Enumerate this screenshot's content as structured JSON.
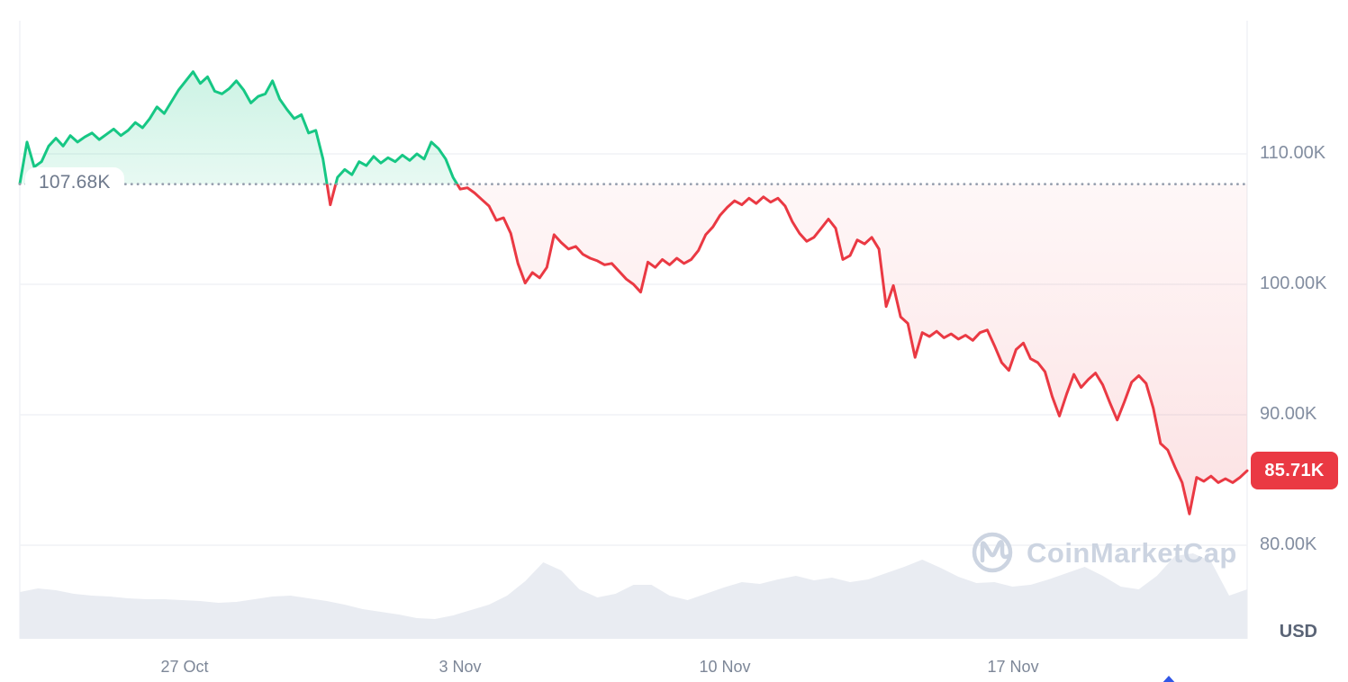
{
  "watermark": {
    "text": "CoinMarketCap"
  },
  "chart_data": {
    "type": "line",
    "description": "1-month cryptocurrency price chart with volume, price falling from ~116.3K to 85.71K USD",
    "y_axis": {
      "unit_label": "USD",
      "ticks": [
        {
          "value": 110,
          "label": "110.00K"
        },
        {
          "value": 100,
          "label": "100.00K"
        },
        {
          "value": 90,
          "label": "90.00K"
        },
        {
          "value": 80,
          "label": "80.00K"
        }
      ]
    },
    "x_axis": {
      "ticks": [
        {
          "label": "27 Oct",
          "f": 0.1343
        },
        {
          "label": "3 Nov",
          "f": 0.3588
        },
        {
          "label": "10 Nov",
          "f": 0.5745
        },
        {
          "label": "17 Nov",
          "f": 0.8093
        }
      ]
    },
    "baseline": {
      "value": 107.68,
      "label": "107.68K"
    },
    "last_price": {
      "value": 85.71,
      "label": "85.71K"
    },
    "series": [
      {
        "name": "price",
        "unit": "thousand USD",
        "values": [
          107.7,
          110.9,
          109.0,
          109.4,
          110.6,
          111.2,
          110.6,
          111.4,
          110.9,
          111.3,
          111.6,
          111.1,
          111.5,
          111.9,
          111.4,
          111.8,
          112.4,
          112.0,
          112.7,
          113.6,
          113.1,
          114.0,
          114.9,
          115.6,
          116.3,
          115.4,
          115.9,
          114.8,
          114.6,
          115.0,
          115.6,
          114.9,
          113.9,
          114.4,
          114.6,
          115.6,
          114.2,
          113.4,
          112.7,
          113.0,
          111.6,
          111.8,
          109.6,
          106.1,
          108.2,
          108.8,
          108.4,
          109.4,
          109.1,
          109.8,
          109.3,
          109.7,
          109.4,
          109.9,
          109.5,
          110.0,
          109.6,
          110.9,
          110.4,
          109.6,
          108.2,
          107.3,
          107.4,
          107.0,
          106.5,
          106.0,
          104.9,
          105.1,
          103.9,
          101.6,
          100.1,
          100.9,
          100.5,
          101.3,
          103.8,
          103.2,
          102.7,
          102.9,
          102.3,
          102.0,
          101.8,
          101.5,
          101.6,
          101.0,
          100.4,
          100.0,
          99.4,
          101.7,
          101.3,
          101.9,
          101.5,
          102.0,
          101.6,
          101.9,
          102.6,
          103.8,
          104.4,
          105.3,
          105.9,
          106.4,
          106.1,
          106.6,
          106.2,
          106.7,
          106.3,
          106.6,
          106.0,
          104.8,
          103.9,
          103.3,
          103.6,
          104.3,
          105.0,
          104.3,
          101.9,
          102.2,
          103.4,
          103.1,
          103.6,
          102.7,
          98.3,
          99.9,
          97.5,
          97.0,
          94.4,
          96.3,
          96.0,
          96.4,
          95.9,
          96.2,
          95.8,
          96.1,
          95.7,
          96.3,
          96.5,
          95.3,
          94.0,
          93.4,
          95.0,
          95.5,
          94.3,
          94.0,
          93.3,
          91.4,
          89.9,
          91.6,
          93.1,
          92.1,
          92.7,
          93.2,
          92.3,
          90.9,
          89.6,
          91.0,
          92.5,
          93.0,
          92.4,
          90.5,
          87.8,
          87.3,
          86.0,
          84.8,
          82.4,
          85.2,
          84.9,
          85.3,
          84.8,
          85.1,
          84.8,
          85.2,
          85.71
        ]
      }
    ],
    "volume_series": {
      "name": "volume",
      "unit": "relative height (max 100)",
      "values": [
        52,
        56,
        54,
        50,
        48,
        47,
        45,
        44,
        44,
        43,
        42,
        40,
        41,
        44,
        47,
        48,
        45,
        42,
        38,
        33,
        30,
        27,
        23,
        22,
        26,
        32,
        38,
        48,
        64,
        85,
        76,
        55,
        46,
        50,
        60,
        60,
        48,
        43,
        50,
        57,
        63,
        61,
        66,
        70,
        65,
        68,
        63,
        66,
        73,
        80,
        88,
        79,
        69,
        62,
        63,
        58,
        60,
        66,
        73,
        80,
        70,
        58,
        55,
        70,
        92,
        95,
        86,
        48,
        55
      ]
    },
    "colors": {
      "up": "#16c784",
      "down": "#ea3943",
      "grid": "#f0f2f5",
      "axis_text": "#828da0",
      "date_text": "#7d8798",
      "volume_fill": "#e9ecf2",
      "watermark": "#ccd4e1",
      "baseline_dots": "#97a0af",
      "baseline_pill_bg": "#ffffff",
      "baseline_pill_text": "#6e798c",
      "badge_bg": "#ea3943",
      "badge_text": "#ffffff",
      "usd_text": "#5a6476",
      "arrow": "#3156e6"
    }
  }
}
